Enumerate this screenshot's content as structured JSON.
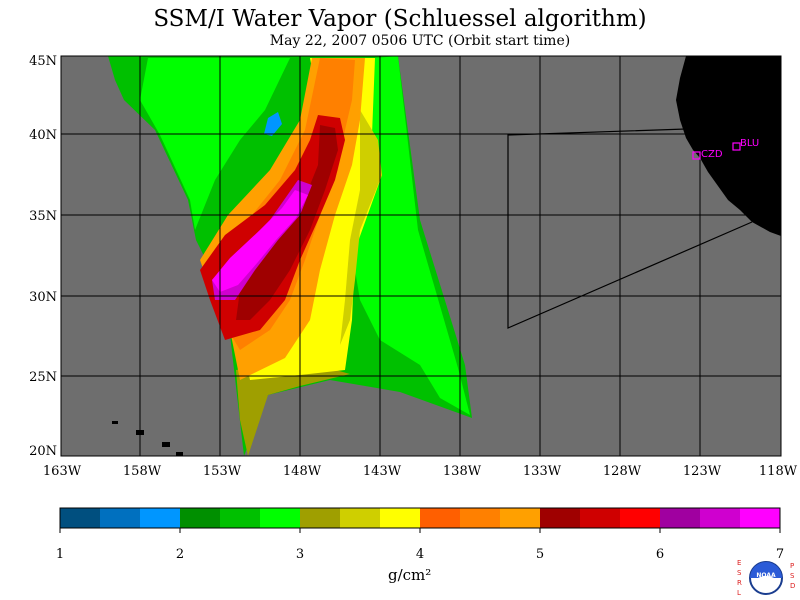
{
  "title": "SSM/I Water Vapor (Schluessel algorithm)",
  "subtitle": "May 22, 2007  0506 UTC  (Orbit start time)",
  "map": {
    "lat_labels": [
      "45N",
      "40N",
      "35N",
      "30N",
      "25N",
      "20N"
    ],
    "lon_labels": [
      "163W",
      "158W",
      "153W",
      "148W",
      "143W",
      "138W",
      "133W",
      "128W",
      "123W",
      "118W"
    ],
    "stations": [
      {
        "id": "CZD",
        "label": "CZD",
        "lat": 38.6,
        "lon": -123.2
      },
      {
        "id": "BLU",
        "label": "BLU",
        "lat": 39.2,
        "lon": -120.8
      }
    ],
    "background_color": "#6e6e6e",
    "land_color": "#000000",
    "station_color": "#ff00ff"
  },
  "colorbar": {
    "colors": [
      "#004f7f",
      "#0070bf",
      "#0096ff",
      "#008f00",
      "#00c000",
      "#00ff00",
      "#9f9f00",
      "#cfcf00",
      "#ffff00",
      "#ff5f00",
      "#ff8000",
      "#ffa000",
      "#9f0000",
      "#cf0000",
      "#ff0000",
      "#a000a0",
      "#cf00cf",
      "#ff00ff"
    ],
    "tick_labels": [
      "1",
      "2",
      "3",
      "4",
      "5",
      "6",
      "7"
    ],
    "units": "g/cm²"
  },
  "logo": {
    "left_letters": [
      "E",
      "S",
      "R",
      "L"
    ],
    "right_letters": [
      "P",
      "S",
      "D"
    ],
    "text": "NOAA"
  }
}
